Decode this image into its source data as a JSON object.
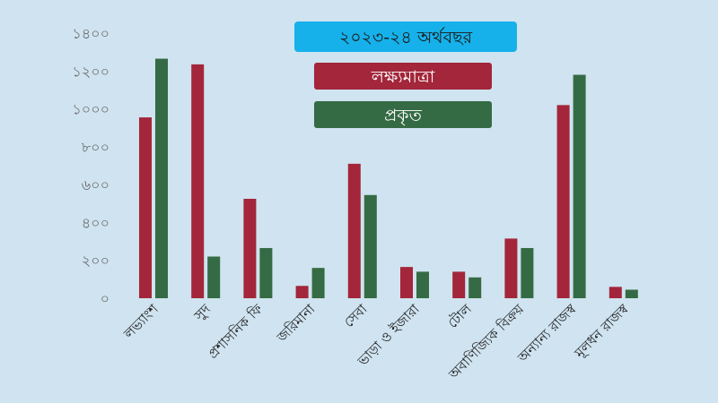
{
  "colors": {
    "background": "#cfe3f0",
    "target": "#a3263a",
    "actual": "#356b44",
    "title_box": "#16b1ea"
  },
  "legend": {
    "title": "২০২৩-২৪ অর্থবছর",
    "target_label": "লক্ষ্যমাত্রা",
    "actual_label": "প্রকৃত"
  },
  "chart_data": {
    "type": "bar",
    "title": "২০২৩-২৪ অর্থবছর",
    "xlabel": "",
    "ylabel": "",
    "ylim": [
      0,
      1400
    ],
    "yticks": [
      0,
      200,
      400,
      600,
      800,
      1000,
      1200,
      1400
    ],
    "ytick_labels": [
      "০",
      "২০০",
      "৪০০",
      "৬০০",
      "৮০০",
      "১০০০",
      "১২০০",
      "১৪০০"
    ],
    "grid": false,
    "legend_position": "top-center",
    "categories": [
      "লভ্যাংশ",
      "সুদ",
      "প্রশাসনিক ফি",
      "জরিমানা",
      "সেবা",
      "ভাড়া ও ইজারা",
      "টোল",
      "অবাণিজ্যিক বিক্রয়",
      "অন্যান্য রাজস্ব",
      "মূলধন রাজস্ব"
    ],
    "series": [
      {
        "name": "লক্ষ্যমাত্রা",
        "color": "#a3263a",
        "values": [
          955,
          1235,
          525,
          65,
          710,
          165,
          140,
          315,
          1020,
          60
        ]
      },
      {
        "name": "প্রকৃত",
        "color": "#356b44",
        "values": [
          1265,
          220,
          265,
          160,
          545,
          140,
          110,
          265,
          1180,
          45
        ]
      }
    ]
  }
}
